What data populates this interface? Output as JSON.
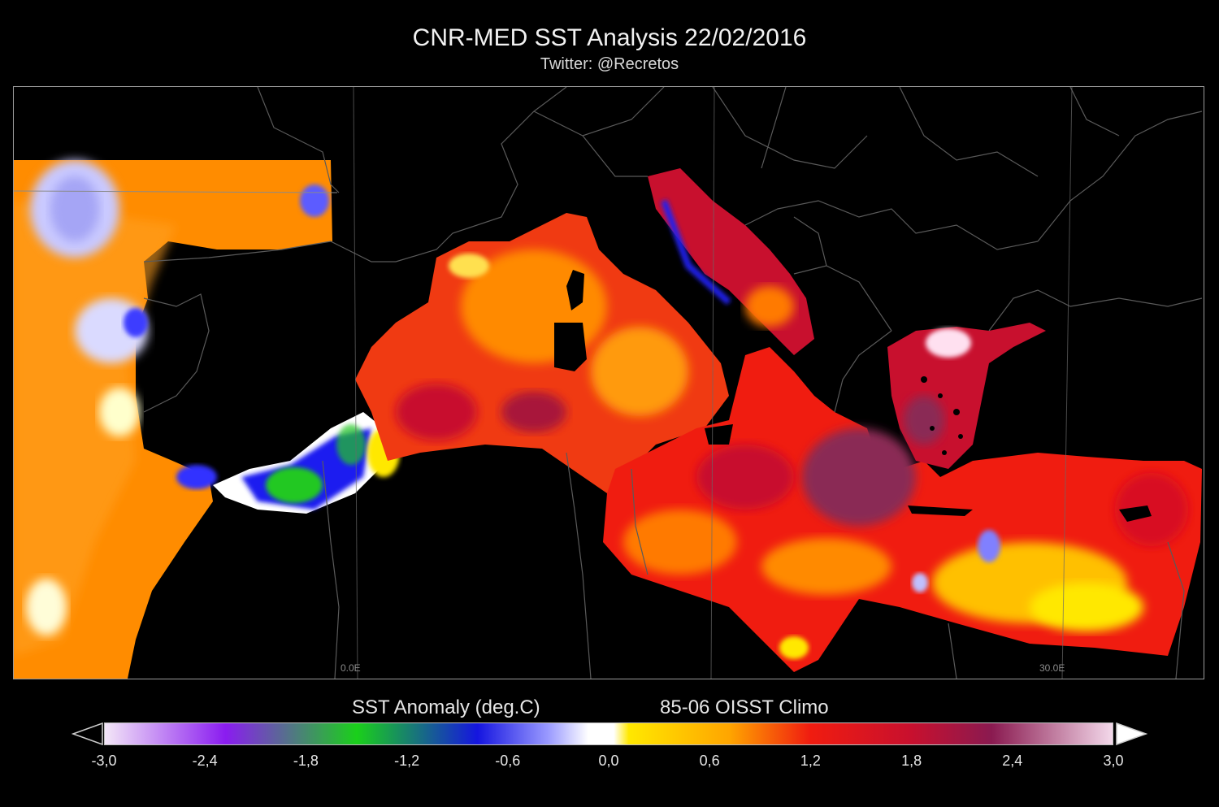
{
  "title": "CNR-MED SST Analysis 22/02/2016",
  "subtitle": "Twitter: @Recretos",
  "map": {
    "lon_labels": [
      "0.0E",
      "30.0E"
    ]
  },
  "legend": {
    "label": "SST Anomaly (deg.C)",
    "climatology": "85-06 OISST Climo",
    "ticks": [
      "-3,0",
      "-2,4",
      "-1,8",
      "-1,2",
      "-0,6",
      "0,0",
      "0,6",
      "1,2",
      "1,8",
      "2,4",
      "3,0"
    ],
    "range": [
      -3.0,
      3.0
    ],
    "colors": {
      "min": "#f3e6f7",
      "neg_2_4": "#8a1cf0",
      "neg_1_5": "#1ad01a",
      "neg_0_7": "#1515e0",
      "zero": "#ffffff",
      "pos_0_2": "#ffe800",
      "pos_0_6": "#ffa500",
      "pos_1_2": "#f01c10",
      "pos_1_8": "#c8102e",
      "pos_2_4": "#8a1a50",
      "max": "#f3d8ea"
    }
  }
}
